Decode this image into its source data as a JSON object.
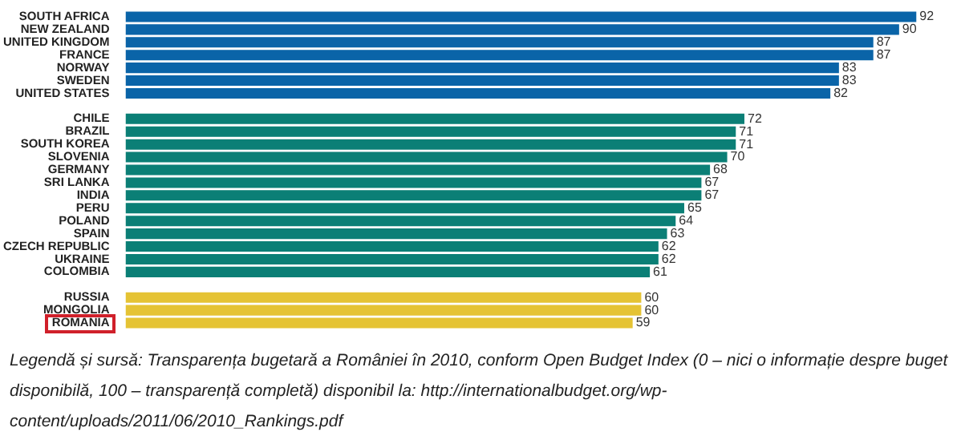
{
  "chart_data": {
    "type": "bar",
    "orientation": "horizontal",
    "data_labels": true,
    "categories": [
      "SOUTH AFRICA",
      "NEW ZEALAND",
      "UNITED KINGDOM",
      "FRANCE",
      "NORWAY",
      "SWEDEN",
      "UNITED STATES",
      null,
      "CHILE",
      "BRAZIL",
      "SOUTH KOREA",
      "SLOVENIA",
      "GERMANY",
      "SRI LANKA",
      "INDIA",
      "PERU",
      "POLAND",
      "SPAIN",
      "CZECH REPUBLIC",
      "UKRAINE",
      "COLOMBIA",
      null,
      "RUSSIA",
      "MONGOLIA",
      "ROMANIA"
    ],
    "values": [
      92,
      90,
      87,
      87,
      83,
      83,
      82,
      null,
      72,
      71,
      71,
      70,
      68,
      67,
      67,
      65,
      64,
      63,
      62,
      62,
      61,
      null,
      60,
      60,
      59
    ],
    "colors": [
      "#0a64a8",
      "#0a64a8",
      "#0a64a8",
      "#0a64a8",
      "#0a64a8",
      "#0a64a8",
      "#0a64a8",
      null,
      "#0b7f76",
      "#0b7f76",
      "#0b7f76",
      "#0b7f76",
      "#0b7f76",
      "#0b7f76",
      "#0b7f76",
      "#0b7f76",
      "#0b7f76",
      "#0b7f76",
      "#0b7f76",
      "#0b7f76",
      "#0b7f76",
      null,
      "#e5c334",
      "#e5c334",
      "#e5c334"
    ],
    "annotations": [
      "Legendă și sursă: Transparența bugetară a României în 2010, conform Open Budget Index (0 – nici o informație despre buget disponibilă, 100 – transparență completă) disponibil la: http://internationalbudget.org/wp-content/uploads/2011/06/2010_Rankings.pdf"
    ]
  }
}
